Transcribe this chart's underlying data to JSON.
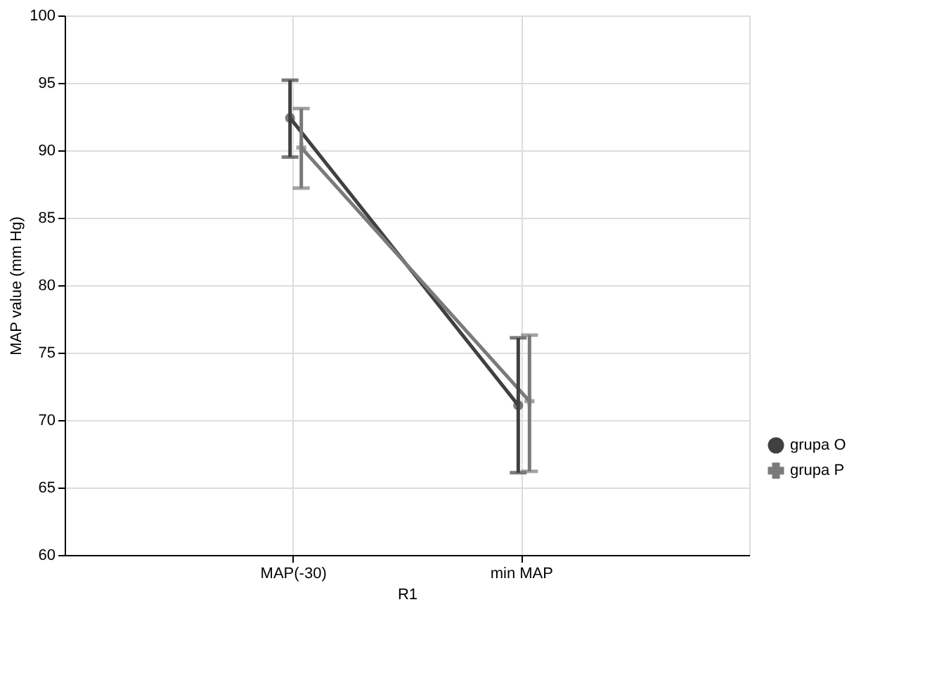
{
  "chart_data": {
    "type": "line",
    "xlabel": "R1",
    "ylabel": "MAP value (mm Hg)",
    "categories": [
      "MAP(-30)",
      "min MAP"
    ],
    "series": [
      {
        "name": "grupa O",
        "color": "#404040",
        "values": [
          92.4,
          71.1
        ],
        "errors": [
          [
            89.5,
            95.2
          ],
          [
            66.1,
            76.1
          ]
        ],
        "marker": "circle"
      },
      {
        "name": "grupa P",
        "color": "#7a7a7a",
        "values": [
          90.2,
          71.4
        ],
        "errors": [
          [
            87.2,
            93.1
          ],
          [
            66.2,
            76.3
          ]
        ],
        "marker": "cross"
      }
    ],
    "ylim": [
      60,
      100
    ],
    "yticks": [
      60,
      65,
      70,
      75,
      80,
      85,
      90,
      95,
      100
    ],
    "grid": true,
    "legend": "bottom right",
    "line_style": "solid"
  }
}
